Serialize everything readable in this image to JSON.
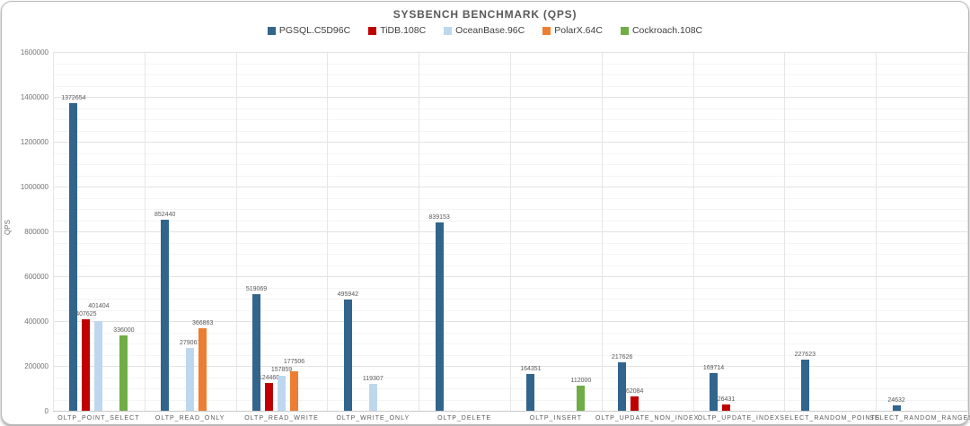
{
  "chart_data": {
    "type": "bar",
    "title": "SYSBENCH BENCHMARK (QPS)",
    "xlabel": "",
    "ylabel": "QPS",
    "ylim": [
      0,
      1600000
    ],
    "ytick_step": 200000,
    "minor_tick_step": 50000,
    "grid": true,
    "legend_position": "top",
    "categories": [
      "OLTP_POINT_SELECT",
      "OLTP_READ_ONLY",
      "OLTP_READ_WRITE",
      "OLTP_WRITE_ONLY",
      "OLTP_DELETE",
      "OLTP_INSERT",
      "OLTP_UPDATE_NON_INDEX",
      "OLTP_UPDATE_INDEX",
      "SELECT_RANDOM_POINTS",
      "SELECT_RANDOM_RANGES"
    ],
    "series": [
      {
        "name": "PGSQL.C5D96C",
        "color": "#31658c",
        "values": [
          1372654,
          852440,
          519069,
          495942,
          839153,
          164351,
          217626,
          169714,
          227623,
          24632
        ]
      },
      {
        "name": "TiDB.108C",
        "color": "#c00000",
        "values": [
          407625,
          null,
          124460,
          null,
          null,
          null,
          62084,
          26431,
          null,
          null
        ]
      },
      {
        "name": "OceanBase.96C",
        "color": "#bdd7ee",
        "values": [
          401404,
          279067,
          157859,
          119307,
          null,
          null,
          null,
          null,
          null,
          null
        ]
      },
      {
        "name": "PolarX.64C",
        "color": "#ed7d31",
        "values": [
          null,
          366863,
          177506,
          null,
          null,
          null,
          null,
          null,
          null,
          null
        ]
      },
      {
        "name": "Cockroach.108C",
        "color": "#70ad47",
        "values": [
          336000,
          null,
          null,
          null,
          null,
          112000,
          null,
          null,
          null,
          null
        ]
      }
    ],
    "ytick_labels": [
      "0",
      "200000",
      "400000",
      "600000",
      "800000",
      "1000000",
      "1200000",
      "1400000",
      "1600000"
    ]
  }
}
